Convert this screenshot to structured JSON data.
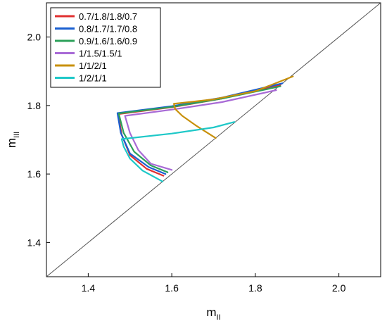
{
  "chart_data": {
    "type": "line",
    "title": "",
    "xlabel": "m",
    "xlabel_sub": "II",
    "ylabel": "m",
    "ylabel_sub": "III",
    "xlim": [
      1.3,
      2.1
    ],
    "ylim": [
      1.3,
      2.1
    ],
    "xticks": [
      "1.4",
      "1.6",
      "1.8",
      "2.0"
    ],
    "yticks": [
      "1.4",
      "1.6",
      "1.8",
      "2.0"
    ],
    "xtick_values": [
      1.4,
      1.6,
      1.8,
      2.0
    ],
    "ytick_values": [
      1.4,
      1.6,
      1.8,
      2.0
    ],
    "grid": false,
    "legend_position": "top-left",
    "diagonal": {
      "x": [
        1.3,
        2.1
      ],
      "y": [
        1.3,
        2.1
      ],
      "color": "#555555"
    },
    "series": [
      {
        "name": "0.7/1.8/1.8/0.7",
        "color": "#e03030",
        "x": [
          1.58,
          1.54,
          1.5,
          1.48,
          1.472,
          1.6,
          1.72,
          1.86
        ],
        "y": [
          1.595,
          1.615,
          1.655,
          1.715,
          1.775,
          1.795,
          1.82,
          1.86
        ]
      },
      {
        "name": "0.8/1.7/1.7/0.8",
        "color": "#1a5fd1",
        "x": [
          1.585,
          1.545,
          1.5,
          1.478,
          1.47,
          1.6,
          1.72,
          1.865
        ],
        "y": [
          1.6,
          1.62,
          1.66,
          1.72,
          1.778,
          1.798,
          1.823,
          1.865
        ]
      },
      {
        "name": "0.9/1.6/1.6/0.9",
        "color": "#2ca05a",
        "x": [
          1.59,
          1.55,
          1.51,
          1.485,
          1.473,
          1.6,
          1.72,
          1.86
        ],
        "y": [
          1.605,
          1.625,
          1.665,
          1.72,
          1.777,
          1.796,
          1.82,
          1.856
        ]
      },
      {
        "name": "1/1.5/1.5/1",
        "color": "#a86ad6",
        "x": [
          1.6,
          1.55,
          1.52,
          1.5,
          1.488,
          1.6,
          1.72,
          1.85
        ],
        "y": [
          1.612,
          1.63,
          1.67,
          1.72,
          1.77,
          1.788,
          1.81,
          1.845
        ]
      },
      {
        "name": "1/1/2/1",
        "color": "#c8900a",
        "x": [
          1.705,
          1.66,
          1.625,
          1.608,
          1.605,
          1.7,
          1.8,
          1.89
        ],
        "y": [
          1.705,
          1.74,
          1.77,
          1.79,
          1.805,
          1.818,
          1.842,
          1.885
        ]
      },
      {
        "name": "1/2/1/1",
        "color": "#1ec8c8",
        "x": [
          1.578,
          1.53,
          1.5,
          1.485,
          1.48,
          1.6,
          1.7,
          1.75
        ],
        "y": [
          1.578,
          1.61,
          1.645,
          1.68,
          1.702,
          1.718,
          1.736,
          1.752
        ]
      }
    ]
  }
}
